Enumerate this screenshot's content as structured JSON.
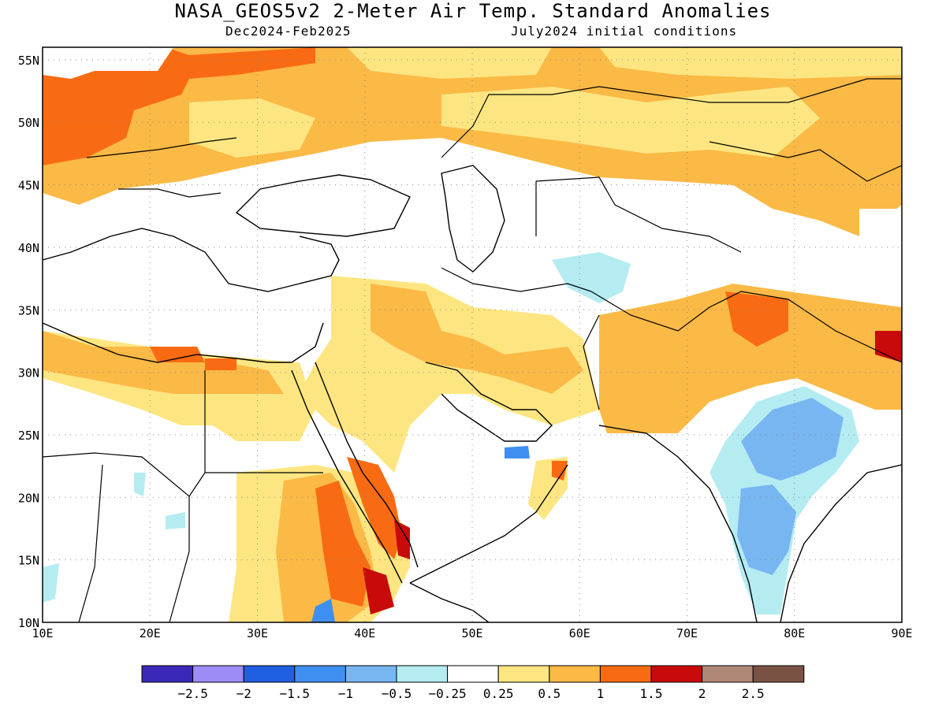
{
  "title": "NASA_GEOS5v2 2-Meter Air Temp. Standard Anomalies",
  "subtitle_left": "Dec2024-Feb2025",
  "subtitle_right": "July2024 initial conditions",
  "map": {
    "lon_range": [
      10,
      90
    ],
    "lat_range": [
      10,
      56
    ],
    "x_ticks": [
      "10E",
      "20E",
      "30E",
      "40E",
      "50E",
      "60E",
      "70E",
      "80E",
      "90E"
    ],
    "y_ticks": [
      "10N",
      "15N",
      "20N",
      "25N",
      "30N",
      "35N",
      "40N",
      "45N",
      "50N",
      "55N"
    ],
    "grid": "dotted"
  },
  "colorbar": {
    "colors": [
      "#3a28b8",
      "#9d8cf5",
      "#1f5fe0",
      "#3f8ff0",
      "#78b6f2",
      "#b4ecf2",
      "#ffffff",
      "#fde681",
      "#fbb946",
      "#f96b12",
      "#c80a0a",
      "#b08878",
      "#7a5244"
    ],
    "labels": [
      "−2.5",
      "−2",
      "−1.5",
      "−1",
      "−0.5",
      "−0.25",
      "0.25",
      "0.5",
      "1",
      "1.5",
      "2",
      "2.5"
    ]
  }
}
